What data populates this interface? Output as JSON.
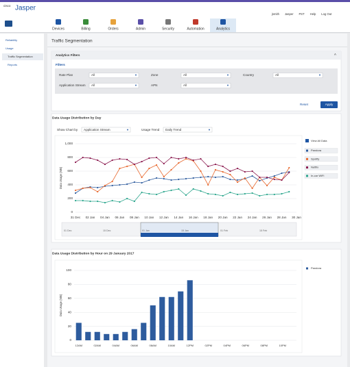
{
  "header": {
    "logo_brand": "cisco",
    "logo_product": "Jasper",
    "user_links": [
      "jsmith",
      "Jasper",
      "PST",
      "Help",
      "Log Out"
    ]
  },
  "nav": [
    "Devices",
    "Billing",
    "Orders",
    "Admin",
    "Security",
    "Automation",
    "Analytics"
  ],
  "sidebar": [
    "Reliability",
    "Usage",
    "Traffic Segmentation",
    "Reports"
  ],
  "page_title": "Traffic Segmentation",
  "filters": {
    "panel_title": "Analytics Filters",
    "heading": "Filters",
    "fields": [
      {
        "label": "Rate Plan",
        "value": "All"
      },
      {
        "label": "Zone",
        "value": "All"
      },
      {
        "label": "Country",
        "value": "All"
      },
      {
        "label": "Application Stream",
        "value": "All"
      },
      {
        "label": "APN",
        "value": "All"
      }
    ],
    "reset": "Reset",
    "apply": "Apply"
  },
  "controls": {
    "show_by_label": "Show Chart by",
    "show_by_value": "Application Stream",
    "trend_label": "Usage Trend",
    "trend_value": "Daily Trend",
    "view_all": "View All Data"
  },
  "navigator": {
    "labels": [
      "01 Dec",
      "15 Dec",
      "01 Jan",
      "15 Jan",
      "01 Feb",
      "15 Feb"
    ]
  },
  "chart_data": [
    {
      "type": "line",
      "title": "Data Usage Distribution by Day",
      "y_label": "Data Usage (MB)",
      "categories": [
        "31 Dec",
        null,
        "02 Jan",
        null,
        "04 Jan",
        null,
        "06 Jan",
        null,
        "08 Jan",
        null,
        "10 Jan",
        null,
        "12 Jan",
        null,
        "14 Jan",
        null,
        "16 Jan",
        null,
        "18 Jan",
        null,
        "20 Jan",
        null,
        "22 Jan",
        null,
        "24 Jan",
        null,
        "26 Jan",
        null,
        "28 Jan",
        null,
        "30 Jan"
      ],
      "ylim": [
        0,
        1000
      ],
      "yticks": [
        0,
        200,
        400,
        600,
        800,
        {
          "value": 1000,
          "label": "1,000"
        }
      ],
      "grid": true,
      "series": [
        {
          "name": "Pandora",
          "color": "#2e5c9e",
          "values": [
            280,
            350,
            370,
            360,
            380,
            390,
            400,
            410,
            440,
            430,
            470,
            500,
            490,
            470,
            480,
            490,
            500,
            510,
            520,
            510,
            520,
            480,
            470,
            490,
            530,
            460,
            500,
            530,
            570,
            590,
            null
          ]
        },
        {
          "name": "Spotify",
          "color": "#e8692f",
          "values": [
            320,
            350,
            360,
            300,
            390,
            450,
            640,
            670,
            700,
            510,
            640,
            690,
            520,
            620,
            720,
            780,
            750,
            600,
            400,
            620,
            590,
            550,
            440,
            500,
            350,
            510,
            390,
            510,
            470,
            650,
            null
          ]
        },
        {
          "name": "Netflix",
          "color": "#8b1a4f",
          "values": [
            730,
            800,
            790,
            760,
            700,
            760,
            780,
            770,
            700,
            740,
            790,
            800,
            710,
            800,
            780,
            800,
            760,
            780,
            670,
            700,
            670,
            600,
            640,
            590,
            600,
            510,
            510,
            480,
            470,
            580,
            null
          ]
        },
        {
          "name": "In-car WiFi",
          "color": "#2aa58c",
          "values": [
            170,
            170,
            160,
            160,
            140,
            170,
            150,
            200,
            160,
            290,
            270,
            260,
            300,
            320,
            340,
            250,
            340,
            310,
            270,
            260,
            240,
            290,
            260,
            270,
            280,
            240,
            260,
            260,
            270,
            300,
            null
          ]
        }
      ]
    },
    {
      "type": "bar",
      "title": "Data Usage Distribution by Hour on 29 January 2017",
      "y_label": "Data Usage (MB)",
      "categories": [
        "12AM",
        null,
        "02AM",
        null,
        "04AM",
        null,
        "06AM",
        null,
        "08AM",
        null,
        "10AM",
        null,
        "12PM",
        null,
        "02PM",
        null,
        "04PM",
        null,
        "06PM",
        null,
        "08PM",
        null,
        "10PM",
        null
      ],
      "ylim": [
        0,
        100
      ],
      "yticks": [
        0,
        20,
        40,
        60,
        80,
        100
      ],
      "grid": true,
      "series": [
        {
          "name": "Pandora",
          "color": "#2e5c9e",
          "values": [
            25,
            12,
            12,
            9,
            9,
            12,
            16,
            25,
            50,
            62,
            62,
            70,
            86,
            null,
            null,
            null,
            null,
            null,
            null,
            null,
            null,
            null,
            null,
            null
          ]
        }
      ]
    }
  ]
}
